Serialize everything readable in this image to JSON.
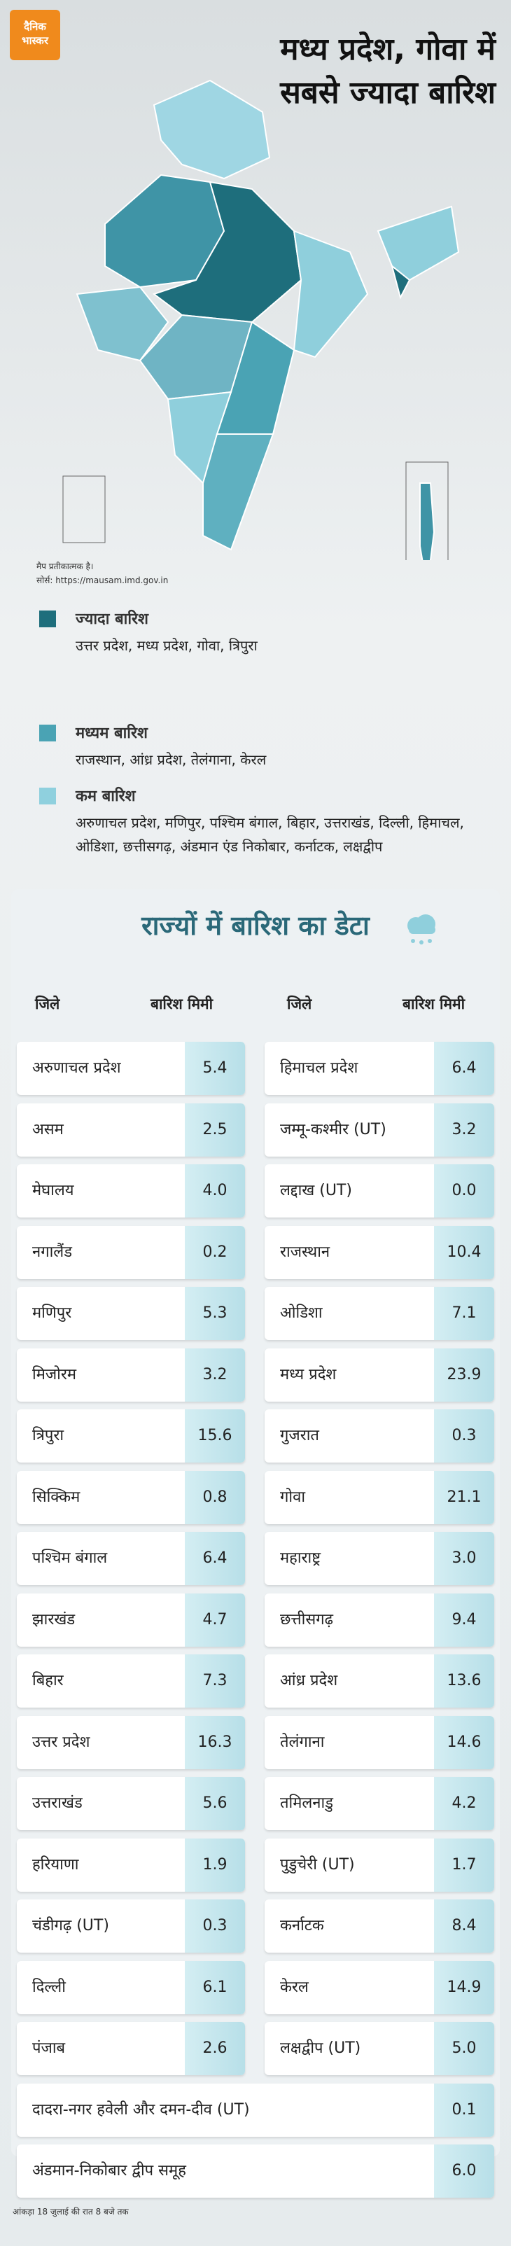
{
  "header": {
    "logo": "दैनिक भास्कर",
    "title": "मध्य प्रदेश, गोवा में सबसे ज्यादा बारिश"
  },
  "map": {
    "note": "मैप प्रतीकात्मक है।",
    "source": "सोर्स: https://mausam.imd.gov.in"
  },
  "legend": [
    {
      "title": "ज्यादा बारिश",
      "states": "उत्तर प्रदेश, मध्य प्रदेश, गोवा, त्रिपुरा"
    },
    {
      "title": "मध्यम बारिश",
      "states": "राजस्थान, आंध्र प्रदेश, तेलंगाना, केरल"
    },
    {
      "title": "कम बारिश",
      "states": "अरुणाचल प्रदेश, मणिपुर, पश्चिम बंगाल, बिहार, उत्तराखंड, दिल्ली, हिमाचल, ओडिशा, छत्तीसगढ़, अंडमान एंड निकोबार, कर्नाटक, लक्षद्वीप"
    }
  ],
  "table": {
    "title": "राज्यों में बारिश का डेटा",
    "headers": [
      "जिले",
      "बारिश मिमी",
      "जिले",
      "बारिश मिमी"
    ],
    "left_rows": [
      [
        "अरुणाचल प्रदेश",
        "5.4"
      ],
      [
        "असम",
        "2.5"
      ],
      [
        "मेघालय",
        "4.0"
      ],
      [
        "नगालैंड",
        "0.2"
      ],
      [
        "मणिपुर",
        "5.3"
      ],
      [
        "मिजोरम",
        "3.2"
      ],
      [
        "त्रिपुरा",
        "15.6"
      ],
      [
        "सिक्किम",
        "0.8"
      ],
      [
        "पश्चिम बंगाल",
        "6.4"
      ],
      [
        "झारखंड",
        "4.7"
      ],
      [
        "बिहार",
        "7.3"
      ],
      [
        "उत्तर प्रदेश",
        "16.3"
      ],
      [
        "उत्तराखंड",
        "5.6"
      ],
      [
        "हरियाणा",
        "1.9"
      ],
      [
        "चंडीगढ़ (UT)",
        "0.3"
      ],
      [
        "दिल्ली",
        "6.1"
      ],
      [
        "पंजाब",
        "2.6"
      ]
    ],
    "right_rows": [
      [
        "हिमाचल प्रदेश",
        "6.4"
      ],
      [
        "जम्मू-कश्मीर (UT)",
        "3.2"
      ],
      [
        "लद्दाख (UT)",
        "0.0"
      ],
      [
        "राजस्थान",
        "10.4"
      ],
      [
        "ओडिशा",
        "7.1"
      ],
      [
        "मध्य प्रदेश",
        "23.9"
      ],
      [
        "गुजरात",
        "0.3"
      ],
      [
        "गोवा",
        "21.1"
      ],
      [
        "महाराष्ट्र",
        "3.0"
      ],
      [
        "छत्तीसगढ़",
        "9.4"
      ],
      [
        "आंध्र प्रदेश",
        "13.6"
      ],
      [
        "तेलंगाना",
        "14.6"
      ],
      [
        "तमिलनाडु",
        "4.2"
      ],
      [
        "पुडुचेरी (UT)",
        "1.7"
      ],
      [
        "कर्नाटक",
        "8.4"
      ],
      [
        "केरल",
        "14.9"
      ],
      [
        "लक्षद्वीप (UT)",
        "5.0"
      ]
    ],
    "full_rows": [
      [
        "दादरा-नगर हवेली और दमन-दीव (UT)",
        "0.1"
      ],
      [
        "अंडमान-निकोबार द्वीप समूह",
        "6.0"
      ]
    ]
  },
  "footer": "आंकड़ा 18 जुलाई की रात 8 बजे तक"
}
